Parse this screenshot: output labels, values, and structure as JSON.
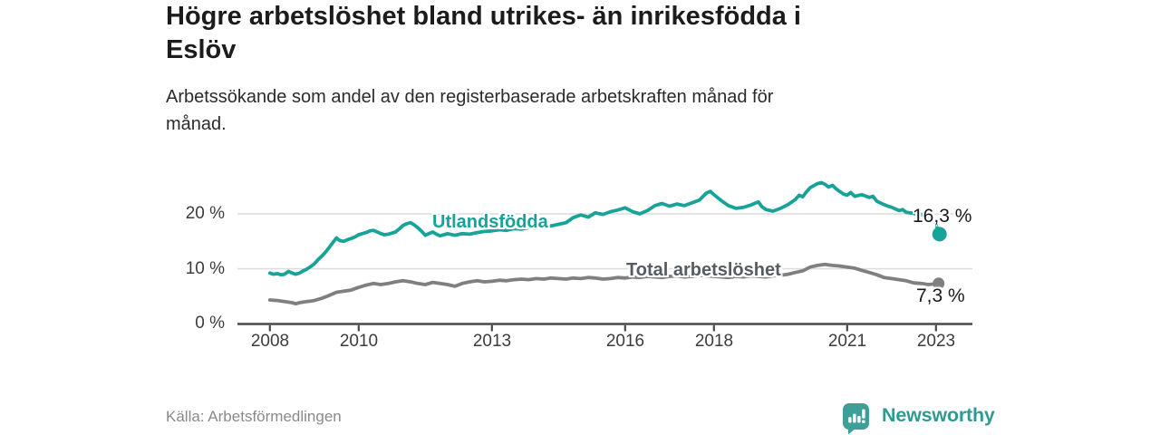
{
  "header": {
    "title": "Högre arbetslöshet bland utrikes- än inrikesfödda i\nEslöv",
    "subtitle": "Arbetssökande som andel av den registerbaserade arbetskraften månad för\nmånad."
  },
  "footer": {
    "source": "Källa: Arbetsförmedlingen",
    "brand": "Newsworthy"
  },
  "colors": {
    "foreign_line": "#17a398",
    "total_line": "#7f7f7f",
    "total_label": "#565c63",
    "grid": "#dcdcdc",
    "axis": "#47484a",
    "tick_text": "#3c3c3c",
    "value_text": "#1a1a1a",
    "brand_teal": "#2f9a93"
  },
  "chart_data": {
    "type": "line",
    "title": "Högre arbetslöshet bland utrikes- än inrikesfödda i Eslöv",
    "xlabel": "",
    "ylabel": "%",
    "ylim": [
      0,
      27
    ],
    "xlim": [
      2007.27,
      2023.82
    ],
    "grid": "horizontal",
    "legend_position": "inline-labels",
    "y_gridlines": [
      10,
      20
    ],
    "y_ticks": [
      {
        "value": 0,
        "label": "0 %"
      },
      {
        "value": 10,
        "label": "10 %"
      },
      {
        "value": 20,
        "label": "20 %"
      }
    ],
    "x_ticks": [
      {
        "value": 2008,
        "label": "2008"
      },
      {
        "value": 2010,
        "label": "2010"
      },
      {
        "value": 2013,
        "label": "2013"
      },
      {
        "value": 2016,
        "label": "2016"
      },
      {
        "value": 2018,
        "label": "2018"
      },
      {
        "value": 2021,
        "label": "2021"
      },
      {
        "value": 2023,
        "label": "2023"
      }
    ],
    "series": [
      {
        "name": "Utlandsfödda",
        "color": "#17a398",
        "line_width": 3.8,
        "dot_radius": 8,
        "end_label": "16,3 %",
        "end_value": 16.3,
        "points": [
          [
            2008.0,
            9.2
          ],
          [
            2008.08,
            9.0
          ],
          [
            2008.17,
            9.1
          ],
          [
            2008.25,
            8.9
          ],
          [
            2008.33,
            9.0
          ],
          [
            2008.42,
            9.5
          ],
          [
            2008.5,
            9.2
          ],
          [
            2008.58,
            9.0
          ],
          [
            2008.67,
            9.2
          ],
          [
            2008.75,
            9.6
          ],
          [
            2008.83,
            9.9
          ],
          [
            2008.92,
            10.4
          ],
          [
            2009.0,
            10.9
          ],
          [
            2009.08,
            11.6
          ],
          [
            2009.17,
            12.3
          ],
          [
            2009.25,
            13.0
          ],
          [
            2009.33,
            13.8
          ],
          [
            2009.42,
            14.8
          ],
          [
            2009.5,
            15.6
          ],
          [
            2009.58,
            15.1
          ],
          [
            2009.67,
            15.0
          ],
          [
            2009.75,
            15.3
          ],
          [
            2009.83,
            15.5
          ],
          [
            2009.92,
            15.8
          ],
          [
            2010.0,
            16.2
          ],
          [
            2010.08,
            16.4
          ],
          [
            2010.17,
            16.6
          ],
          [
            2010.25,
            16.9
          ],
          [
            2010.33,
            17.0
          ],
          [
            2010.42,
            16.7
          ],
          [
            2010.5,
            16.4
          ],
          [
            2010.58,
            16.2
          ],
          [
            2010.67,
            16.3
          ],
          [
            2010.75,
            16.5
          ],
          [
            2010.83,
            16.7
          ],
          [
            2010.92,
            17.3
          ],
          [
            2011.0,
            17.9
          ],
          [
            2011.08,
            18.2
          ],
          [
            2011.17,
            18.4
          ],
          [
            2011.25,
            18.0
          ],
          [
            2011.33,
            17.5
          ],
          [
            2011.42,
            16.8
          ],
          [
            2011.5,
            16.1
          ],
          [
            2011.58,
            16.4
          ],
          [
            2011.67,
            16.7
          ],
          [
            2011.75,
            16.3
          ],
          [
            2011.83,
            16.0
          ],
          [
            2011.92,
            16.2
          ],
          [
            2012.0,
            16.4
          ],
          [
            2012.17,
            16.1
          ],
          [
            2012.33,
            16.4
          ],
          [
            2012.5,
            16.3
          ],
          [
            2012.67,
            16.6
          ],
          [
            2012.83,
            16.8
          ],
          [
            2013.0,
            16.9
          ],
          [
            2013.17,
            17.1
          ],
          [
            2013.33,
            17.0
          ],
          [
            2013.5,
            17.3
          ],
          [
            2013.67,
            17.2
          ],
          [
            2013.83,
            17.5
          ],
          [
            2014.0,
            17.7
          ],
          [
            2014.17,
            17.9
          ],
          [
            2014.33,
            17.8
          ],
          [
            2014.5,
            18.1
          ],
          [
            2014.67,
            18.4
          ],
          [
            2014.83,
            19.3
          ],
          [
            2015.0,
            19.8
          ],
          [
            2015.17,
            19.4
          ],
          [
            2015.33,
            20.2
          ],
          [
            2015.5,
            19.9
          ],
          [
            2015.67,
            20.4
          ],
          [
            2015.83,
            20.7
          ],
          [
            2016.0,
            21.1
          ],
          [
            2016.17,
            20.4
          ],
          [
            2016.33,
            20.0
          ],
          [
            2016.5,
            20.6
          ],
          [
            2016.67,
            21.5
          ],
          [
            2016.83,
            21.9
          ],
          [
            2017.0,
            21.4
          ],
          [
            2017.17,
            21.8
          ],
          [
            2017.33,
            21.5
          ],
          [
            2017.5,
            22.0
          ],
          [
            2017.67,
            22.5
          ],
          [
            2017.83,
            23.8
          ],
          [
            2017.92,
            24.1
          ],
          [
            2018.0,
            23.5
          ],
          [
            2018.17,
            22.4
          ],
          [
            2018.33,
            21.5
          ],
          [
            2018.5,
            21.0
          ],
          [
            2018.67,
            21.2
          ],
          [
            2018.83,
            21.6
          ],
          [
            2019.0,
            22.2
          ],
          [
            2019.08,
            21.3
          ],
          [
            2019.17,
            20.8
          ],
          [
            2019.33,
            20.5
          ],
          [
            2019.5,
            21.0
          ],
          [
            2019.67,
            21.7
          ],
          [
            2019.83,
            22.6
          ],
          [
            2019.92,
            23.4
          ],
          [
            2020.0,
            23.1
          ],
          [
            2020.08,
            24.0
          ],
          [
            2020.17,
            24.8
          ],
          [
            2020.33,
            25.5
          ],
          [
            2020.42,
            25.7
          ],
          [
            2020.5,
            25.4
          ],
          [
            2020.58,
            24.9
          ],
          [
            2020.67,
            25.2
          ],
          [
            2020.75,
            24.6
          ],
          [
            2020.83,
            24.1
          ],
          [
            2020.92,
            23.6
          ],
          [
            2021.0,
            23.4
          ],
          [
            2021.08,
            23.9
          ],
          [
            2021.17,
            23.2
          ],
          [
            2021.33,
            23.5
          ],
          [
            2021.5,
            23.0
          ],
          [
            2021.58,
            23.2
          ],
          [
            2021.67,
            22.3
          ],
          [
            2021.83,
            21.7
          ],
          [
            2021.92,
            21.4
          ],
          [
            2022.0,
            21.2
          ],
          [
            2022.17,
            20.6
          ],
          [
            2022.25,
            20.8
          ],
          [
            2022.33,
            20.3
          ],
          [
            2022.5,
            20.1
          ],
          [
            2022.58,
            19.8
          ],
          [
            2022.67,
            19.9
          ],
          [
            2022.83,
            19.4
          ],
          [
            2022.92,
            19.0
          ],
          [
            2023.0,
            18.2
          ],
          [
            2023.08,
            16.3
          ]
        ]
      },
      {
        "name": "Total arbetslöshet",
        "color": "#7f7f7f",
        "line_width": 3.8,
        "dot_radius": 6.5,
        "end_label": "7,3 %",
        "end_value": 7.3,
        "points": [
          [
            2008.0,
            4.3
          ],
          [
            2008.17,
            4.2
          ],
          [
            2008.33,
            4.0
          ],
          [
            2008.5,
            3.8
          ],
          [
            2008.58,
            3.6
          ],
          [
            2008.67,
            3.8
          ],
          [
            2008.83,
            4.0
          ],
          [
            2008.92,
            4.1
          ],
          [
            2009.0,
            4.2
          ],
          [
            2009.17,
            4.6
          ],
          [
            2009.33,
            5.1
          ],
          [
            2009.5,
            5.7
          ],
          [
            2009.67,
            5.9
          ],
          [
            2009.83,
            6.1
          ],
          [
            2010.0,
            6.6
          ],
          [
            2010.17,
            7.0
          ],
          [
            2010.33,
            7.3
          ],
          [
            2010.5,
            7.1
          ],
          [
            2010.67,
            7.3
          ],
          [
            2010.83,
            7.6
          ],
          [
            2011.0,
            7.8
          ],
          [
            2011.17,
            7.6
          ],
          [
            2011.33,
            7.3
          ],
          [
            2011.5,
            7.1
          ],
          [
            2011.67,
            7.5
          ],
          [
            2011.83,
            7.3
          ],
          [
            2012.0,
            7.1
          ],
          [
            2012.17,
            6.8
          ],
          [
            2012.33,
            7.3
          ],
          [
            2012.5,
            7.6
          ],
          [
            2012.67,
            7.8
          ],
          [
            2012.83,
            7.6
          ],
          [
            2013.0,
            7.7
          ],
          [
            2013.17,
            7.9
          ],
          [
            2013.33,
            7.8
          ],
          [
            2013.5,
            8.0
          ],
          [
            2013.67,
            8.1
          ],
          [
            2013.83,
            8.0
          ],
          [
            2014.0,
            8.2
          ],
          [
            2014.17,
            8.1
          ],
          [
            2014.33,
            8.3
          ],
          [
            2014.5,
            8.2
          ],
          [
            2014.67,
            8.1
          ],
          [
            2014.83,
            8.3
          ],
          [
            2015.0,
            8.2
          ],
          [
            2015.17,
            8.4
          ],
          [
            2015.33,
            8.3
          ],
          [
            2015.5,
            8.1
          ],
          [
            2015.67,
            8.2
          ],
          [
            2015.83,
            8.4
          ],
          [
            2016.0,
            8.3
          ],
          [
            2016.17,
            8.5
          ],
          [
            2016.33,
            8.4
          ],
          [
            2016.5,
            8.6
          ],
          [
            2016.67,
            8.5
          ],
          [
            2016.83,
            8.4
          ],
          [
            2017.0,
            8.6
          ],
          [
            2017.17,
            8.7
          ],
          [
            2017.33,
            8.5
          ],
          [
            2017.5,
            8.6
          ],
          [
            2017.67,
            8.8
          ],
          [
            2017.83,
            8.7
          ],
          [
            2018.0,
            8.6
          ],
          [
            2018.17,
            8.5
          ],
          [
            2018.33,
            8.4
          ],
          [
            2018.5,
            8.6
          ],
          [
            2018.67,
            8.5
          ],
          [
            2018.83,
            8.7
          ],
          [
            2019.0,
            8.6
          ],
          [
            2019.17,
            8.5
          ],
          [
            2019.33,
            8.7
          ],
          [
            2019.5,
            8.8
          ],
          [
            2019.67,
            9.0
          ],
          [
            2019.83,
            9.3
          ],
          [
            2020.0,
            9.6
          ],
          [
            2020.17,
            10.3
          ],
          [
            2020.33,
            10.6
          ],
          [
            2020.5,
            10.8
          ],
          [
            2020.67,
            10.6
          ],
          [
            2020.83,
            10.5
          ],
          [
            2021.0,
            10.3
          ],
          [
            2021.17,
            10.1
          ],
          [
            2021.33,
            9.7
          ],
          [
            2021.5,
            9.3
          ],
          [
            2021.67,
            8.9
          ],
          [
            2021.83,
            8.4
          ],
          [
            2022.0,
            8.2
          ],
          [
            2022.17,
            8.0
          ],
          [
            2022.33,
            7.8
          ],
          [
            2022.5,
            7.4
          ],
          [
            2022.67,
            7.3
          ],
          [
            2022.83,
            7.1
          ],
          [
            2023.06,
            7.3
          ]
        ]
      }
    ]
  }
}
